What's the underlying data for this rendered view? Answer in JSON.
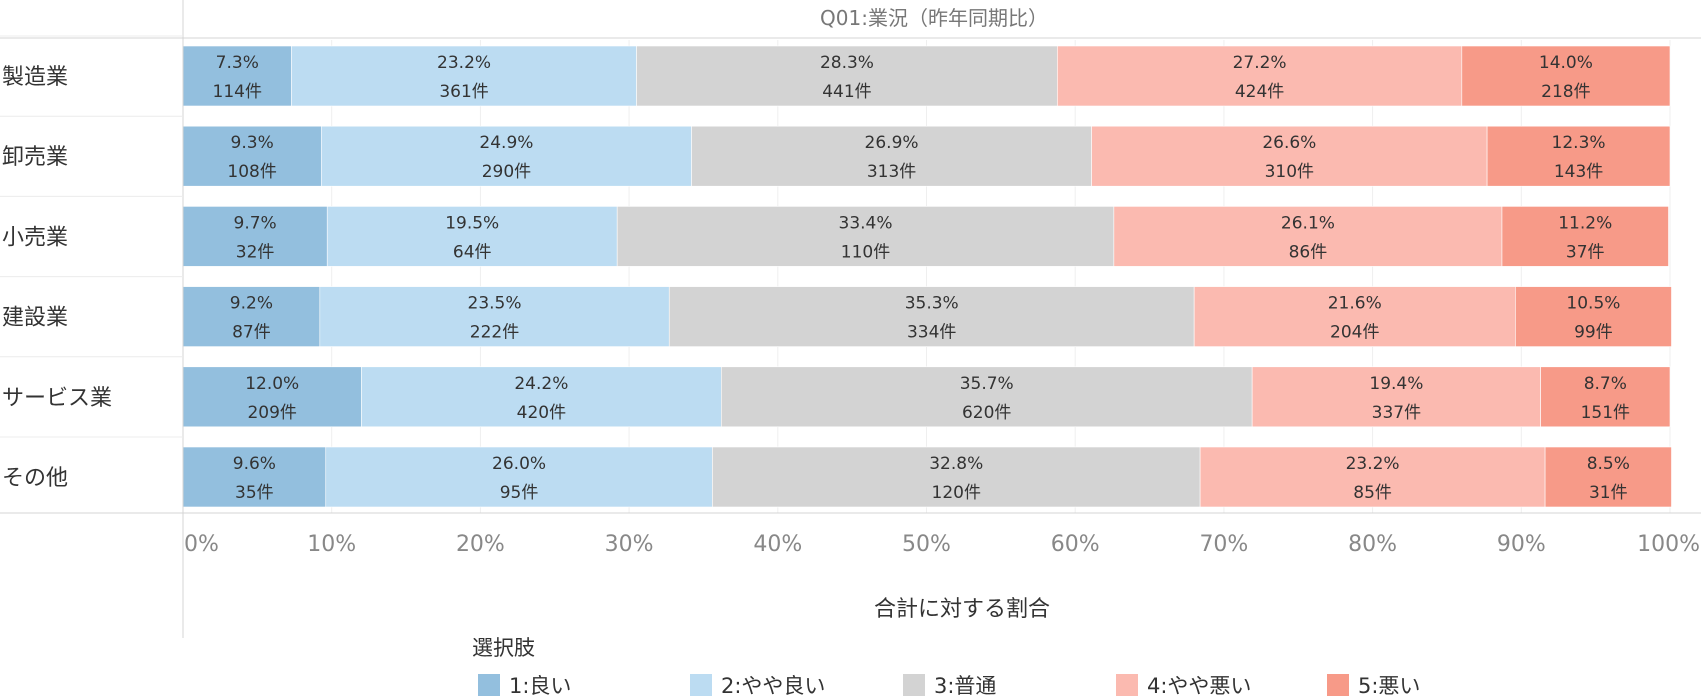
{
  "chart_data": {
    "type": "bar",
    "orientation": "horizontal",
    "stacked": "percent",
    "title": "Q01:業況（昨年同期比）",
    "xlabel": "合計に対する割合",
    "ylabel": "",
    "xlim": [
      0,
      100
    ],
    "x_ticks": [
      "0%",
      "10%",
      "20%",
      "30%",
      "40%",
      "50%",
      "60%",
      "70%",
      "80%",
      "90%",
      "100%"
    ],
    "categories": [
      "製造業",
      "卸売業",
      "小売業",
      "建設業",
      "サービス業",
      "その他"
    ],
    "legend_title": "選択肢",
    "legend_position": "bottom",
    "grid": true,
    "series": [
      {
        "name": "1:良い",
        "color": "#93bfde",
        "percent_labels": [
          "7.3%",
          "9.3%",
          "9.7%",
          "9.2%",
          "12.0%",
          "9.6%"
        ],
        "values": [
          7.3,
          9.3,
          9.7,
          9.2,
          12.0,
          9.6
        ],
        "count_labels": [
          "114件",
          "108件",
          "32件",
          "87件",
          "209件",
          "35件"
        ]
      },
      {
        "name": "2:やや良い",
        "color": "#bcdcf2",
        "percent_labels": [
          "23.2%",
          "24.9%",
          "19.5%",
          "23.5%",
          "24.2%",
          "26.0%"
        ],
        "values": [
          23.2,
          24.9,
          19.5,
          23.5,
          24.2,
          26.0
        ],
        "count_labels": [
          "361件",
          "290件",
          "64件",
          "222件",
          "420件",
          "95件"
        ]
      },
      {
        "name": "3:普通",
        "color": "#d3d3d3",
        "percent_labels": [
          "28.3%",
          "26.9%",
          "33.4%",
          "35.3%",
          "35.7%",
          "32.8%"
        ],
        "values": [
          28.3,
          26.9,
          33.4,
          35.3,
          35.7,
          32.8
        ],
        "count_labels": [
          "441件",
          "313件",
          "110件",
          "334件",
          "620件",
          "120件"
        ]
      },
      {
        "name": "4:やや悪い",
        "color": "#fbbab0",
        "percent_labels": [
          "27.2%",
          "26.6%",
          "26.1%",
          "21.6%",
          "19.4%",
          "23.2%"
        ],
        "values": [
          27.2,
          26.6,
          26.1,
          21.6,
          19.4,
          23.2
        ],
        "count_labels": [
          "424件",
          "310件",
          "86件",
          "204件",
          "337件",
          "85件"
        ]
      },
      {
        "name": "5:悪い",
        "color": "#f79a88",
        "percent_labels": [
          "14.0%",
          "12.3%",
          "11.2%",
          "10.5%",
          "8.7%",
          "8.5%"
        ],
        "values": [
          14.0,
          12.3,
          11.2,
          10.5,
          8.7,
          8.5
        ],
        "count_labels": [
          "218件",
          "143件",
          "37件",
          "99件",
          "151件",
          "31件"
        ]
      }
    ]
  }
}
